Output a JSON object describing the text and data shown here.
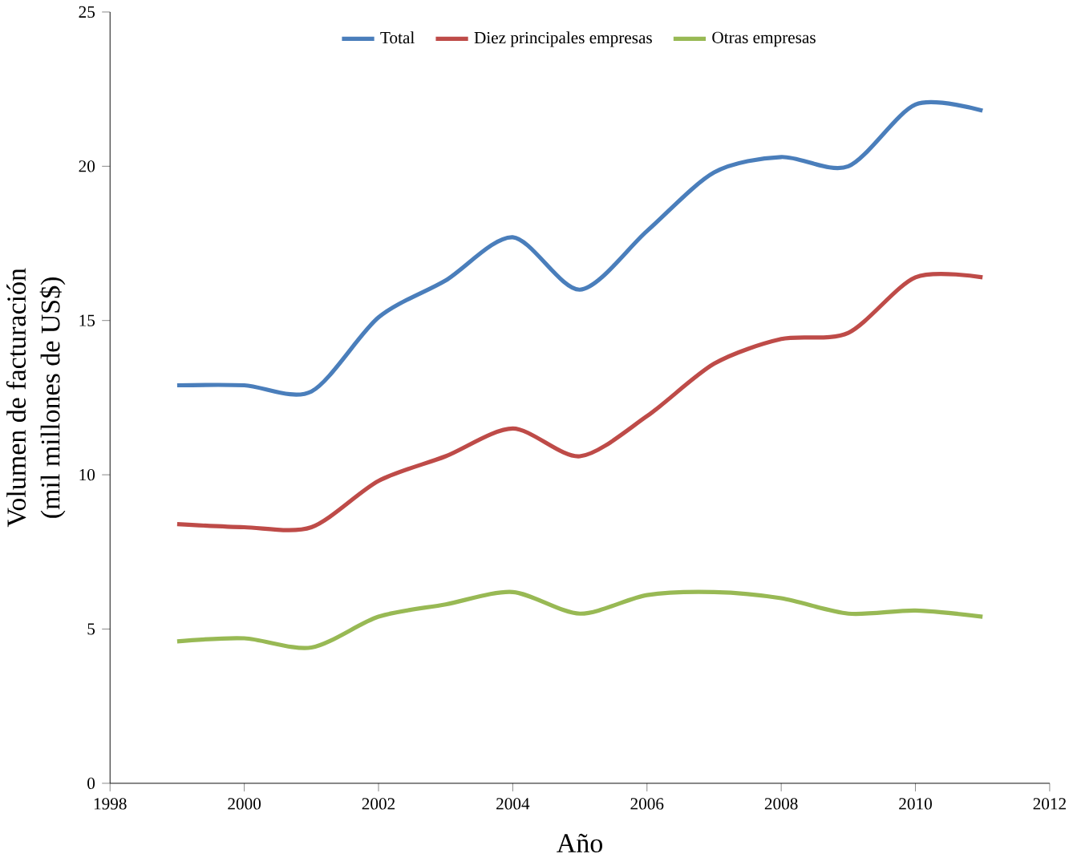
{
  "chart_data": {
    "type": "line",
    "xlabel": "Año",
    "ylabel": "Volumen de facturación\n(mil millones de US$)",
    "x": [
      1999,
      2000,
      2001,
      2002,
      2003,
      2004,
      2005,
      2006,
      2007,
      2008,
      2009,
      2010,
      2011
    ],
    "series": [
      {
        "name": "Total",
        "color": "#4a7ebb",
        "values": [
          12.9,
          12.9,
          12.7,
          15.1,
          16.3,
          17.7,
          16.0,
          17.9,
          19.8,
          20.3,
          20.0,
          22.0,
          21.8
        ]
      },
      {
        "name": "Diez principales empresas",
        "color": "#be4b48",
        "values": [
          8.4,
          8.3,
          8.3,
          9.8,
          10.6,
          11.5,
          10.6,
          11.9,
          13.6,
          14.4,
          14.6,
          16.4,
          16.4
        ]
      },
      {
        "name": "Otras empresas",
        "color": "#98b954",
        "values": [
          4.6,
          4.7,
          4.4,
          5.4,
          5.8,
          6.2,
          5.5,
          6.1,
          6.2,
          6.0,
          5.5,
          5.6,
          5.4
        ]
      }
    ],
    "xlim": [
      1998,
      2012
    ],
    "xticks": [
      1998,
      2000,
      2002,
      2004,
      2006,
      2008,
      2010,
      2012
    ],
    "ylim": [
      0,
      25
    ],
    "yticks": [
      0,
      5,
      10,
      15,
      20,
      25
    ],
    "legend": "top",
    "grid": false,
    "marker": "none",
    "line_style": "solid"
  }
}
